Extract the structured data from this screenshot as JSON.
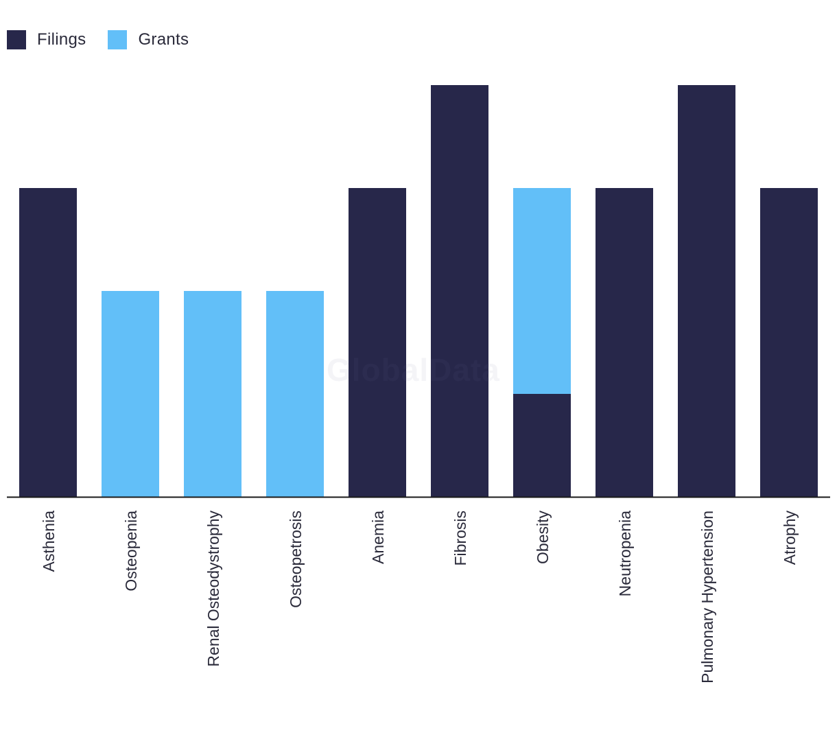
{
  "legend": {
    "filings_label": "Filings",
    "grants_label": "Grants"
  },
  "watermark": "GlobalData",
  "colors": {
    "filings": "#27274a",
    "grants": "#62bff8",
    "axis": "#1a1a1a",
    "tick_text": "#2a2a3a"
  },
  "chart_data": {
    "type": "bar",
    "stacked": true,
    "categories": [
      "Asthenia",
      "Osteopenia",
      "Renal Osteodystrophy",
      "Osteopetrosis",
      "Anemia",
      "Fibrosis",
      "Obesity",
      "Neutropenia",
      "Pulmonary Hypertension",
      "Atrophy"
    ],
    "series": [
      {
        "name": "Filings",
        "values": [
          3,
          0,
          0,
          0,
          3,
          4,
          1,
          3,
          4,
          3
        ]
      },
      {
        "name": "Grants",
        "values": [
          0,
          2,
          2,
          2,
          0,
          0,
          2,
          0,
          0,
          0
        ]
      }
    ],
    "title": "",
    "xlabel": "",
    "ylabel": "",
    "ylim": [
      0,
      4
    ],
    "grid": false,
    "legend_position": "top-left"
  }
}
